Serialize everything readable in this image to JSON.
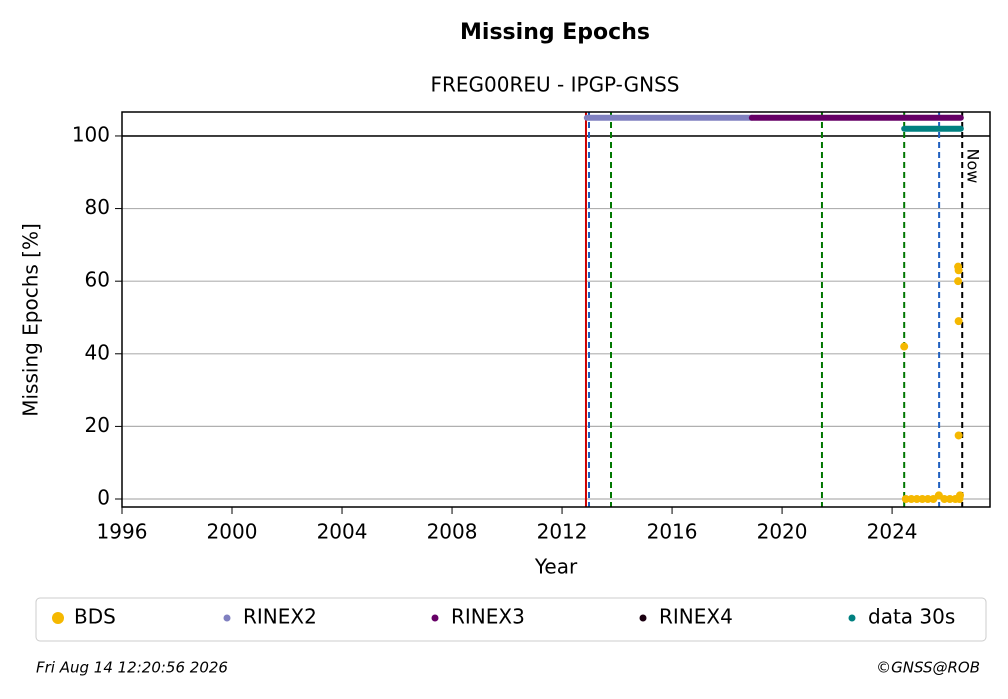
{
  "chart_data": {
    "type": "scatter",
    "title": "Missing Epochs",
    "subtitle": "FREG00REU - IPGP-GNSS",
    "x_label": "Year",
    "y_label": "Missing Epochs [%]",
    "xlim": [
      1996,
      2027.56
    ],
    "ylim": [
      -2.2,
      106.6
    ],
    "xticks": [
      1996,
      2000,
      2004,
      2008,
      2012,
      2016,
      2020,
      2024
    ],
    "yticks": [
      0,
      20,
      40,
      60,
      80,
      100
    ],
    "grid": true,
    "hline": 100,
    "vlines": [
      {
        "value": 2012.87,
        "color": "#cc0000",
        "style": "solid"
      },
      {
        "value": 2012.98,
        "color": "#1f5fbf",
        "style": "dashed"
      },
      {
        "value": 2013.78,
        "color": "#007700",
        "style": "dashed"
      },
      {
        "value": 2021.45,
        "color": "#007700",
        "style": "dashed"
      },
      {
        "value": 2024.44,
        "color": "#007700",
        "style": "dashed"
      },
      {
        "value": 2025.71,
        "color": "#1f5fbf",
        "style": "dashed"
      },
      {
        "value": 2026.55,
        "color": "#000000",
        "style": "dashed",
        "label": "Now"
      }
    ],
    "series": [
      {
        "name": "BDS",
        "color": "#f5b800",
        "type": "scatter",
        "x": [
          2024.44,
          2024.5,
          2024.7,
          2024.9,
          2025.1,
          2025.3,
          2025.5,
          2025.7,
          2025.9,
          2026.1,
          2026.3,
          2026.45,
          2026.47,
          2026.4,
          2026.42,
          2026.4,
          2026.42,
          2026.42
        ],
        "values": [
          42,
          0,
          0,
          0,
          0,
          0,
          0,
          1,
          0,
          0,
          0,
          0,
          1,
          64,
          63,
          60,
          49,
          17.5
        ]
      },
      {
        "name": "RINEX2",
        "color": "#8080c0",
        "type": "line",
        "x": [
          2012.9,
          2018.9
        ],
        "values": [
          105,
          105
        ]
      },
      {
        "name": "RINEX3",
        "color": "#660066",
        "type": "line",
        "x": [
          2018.9,
          2026.5
        ],
        "values": [
          105,
          105
        ]
      },
      {
        "name": "RINEX4",
        "color": "#1a0010",
        "type": "line",
        "x": [],
        "values": []
      },
      {
        "name": "data 30s",
        "color": "#008080",
        "type": "line",
        "x": [
          2024.44,
          2026.5
        ],
        "values": [
          102,
          102
        ]
      }
    ],
    "footer_left": "Fri Aug 14 12:20:56 2026",
    "footer_right": "©GNSS@ROB"
  }
}
